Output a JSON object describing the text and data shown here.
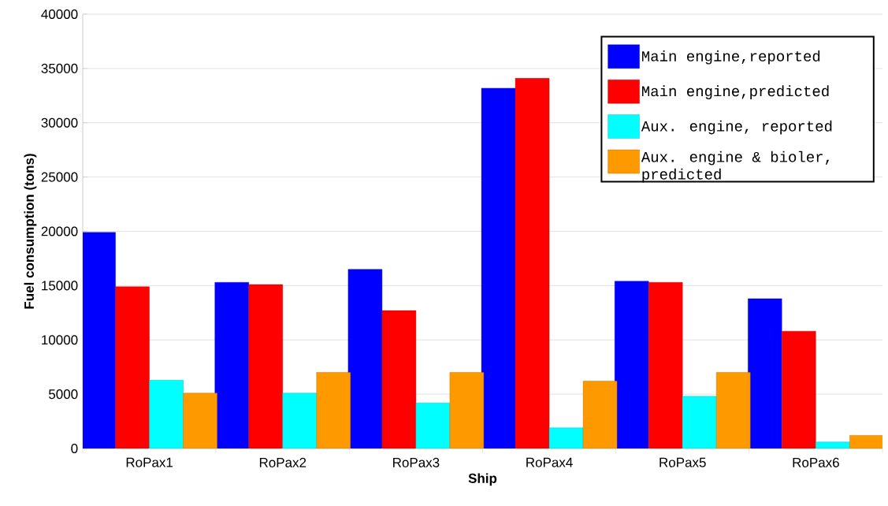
{
  "chart_data": {
    "type": "bar",
    "xlabel": "Ship",
    "ylabel": "Fuel consumption (tons)",
    "categories": [
      "RoPax1",
      "RoPax2",
      "RoPax3",
      "RoPax4",
      "RoPax5",
      "RoPax6"
    ],
    "series": [
      {
        "name": "Main engine,reported",
        "color": "#0000ff",
        "values": [
          19900,
          15300,
          16500,
          33200,
          15400,
          13800
        ]
      },
      {
        "name": "Main engine,predicted",
        "color": "#ff0000",
        "values": [
          14900,
          15100,
          12700,
          34100,
          15300,
          10800
        ]
      },
      {
        "name": "Aux. engine, reported",
        "color": "#00ffff",
        "values": [
          6300,
          5100,
          4200,
          1900,
          4800,
          600
        ]
      },
      {
        "name": "Aux. engine & bioler, predicted",
        "color": "#ff9900",
        "values": [
          5100,
          7000,
          7000,
          6200,
          7000,
          1200
        ]
      }
    ],
    "ylim": [
      0,
      40000
    ],
    "yticks": [
      0,
      5000,
      10000,
      15000,
      20000,
      25000,
      30000,
      35000,
      40000
    ],
    "grid": "y",
    "legend": "top right"
  }
}
